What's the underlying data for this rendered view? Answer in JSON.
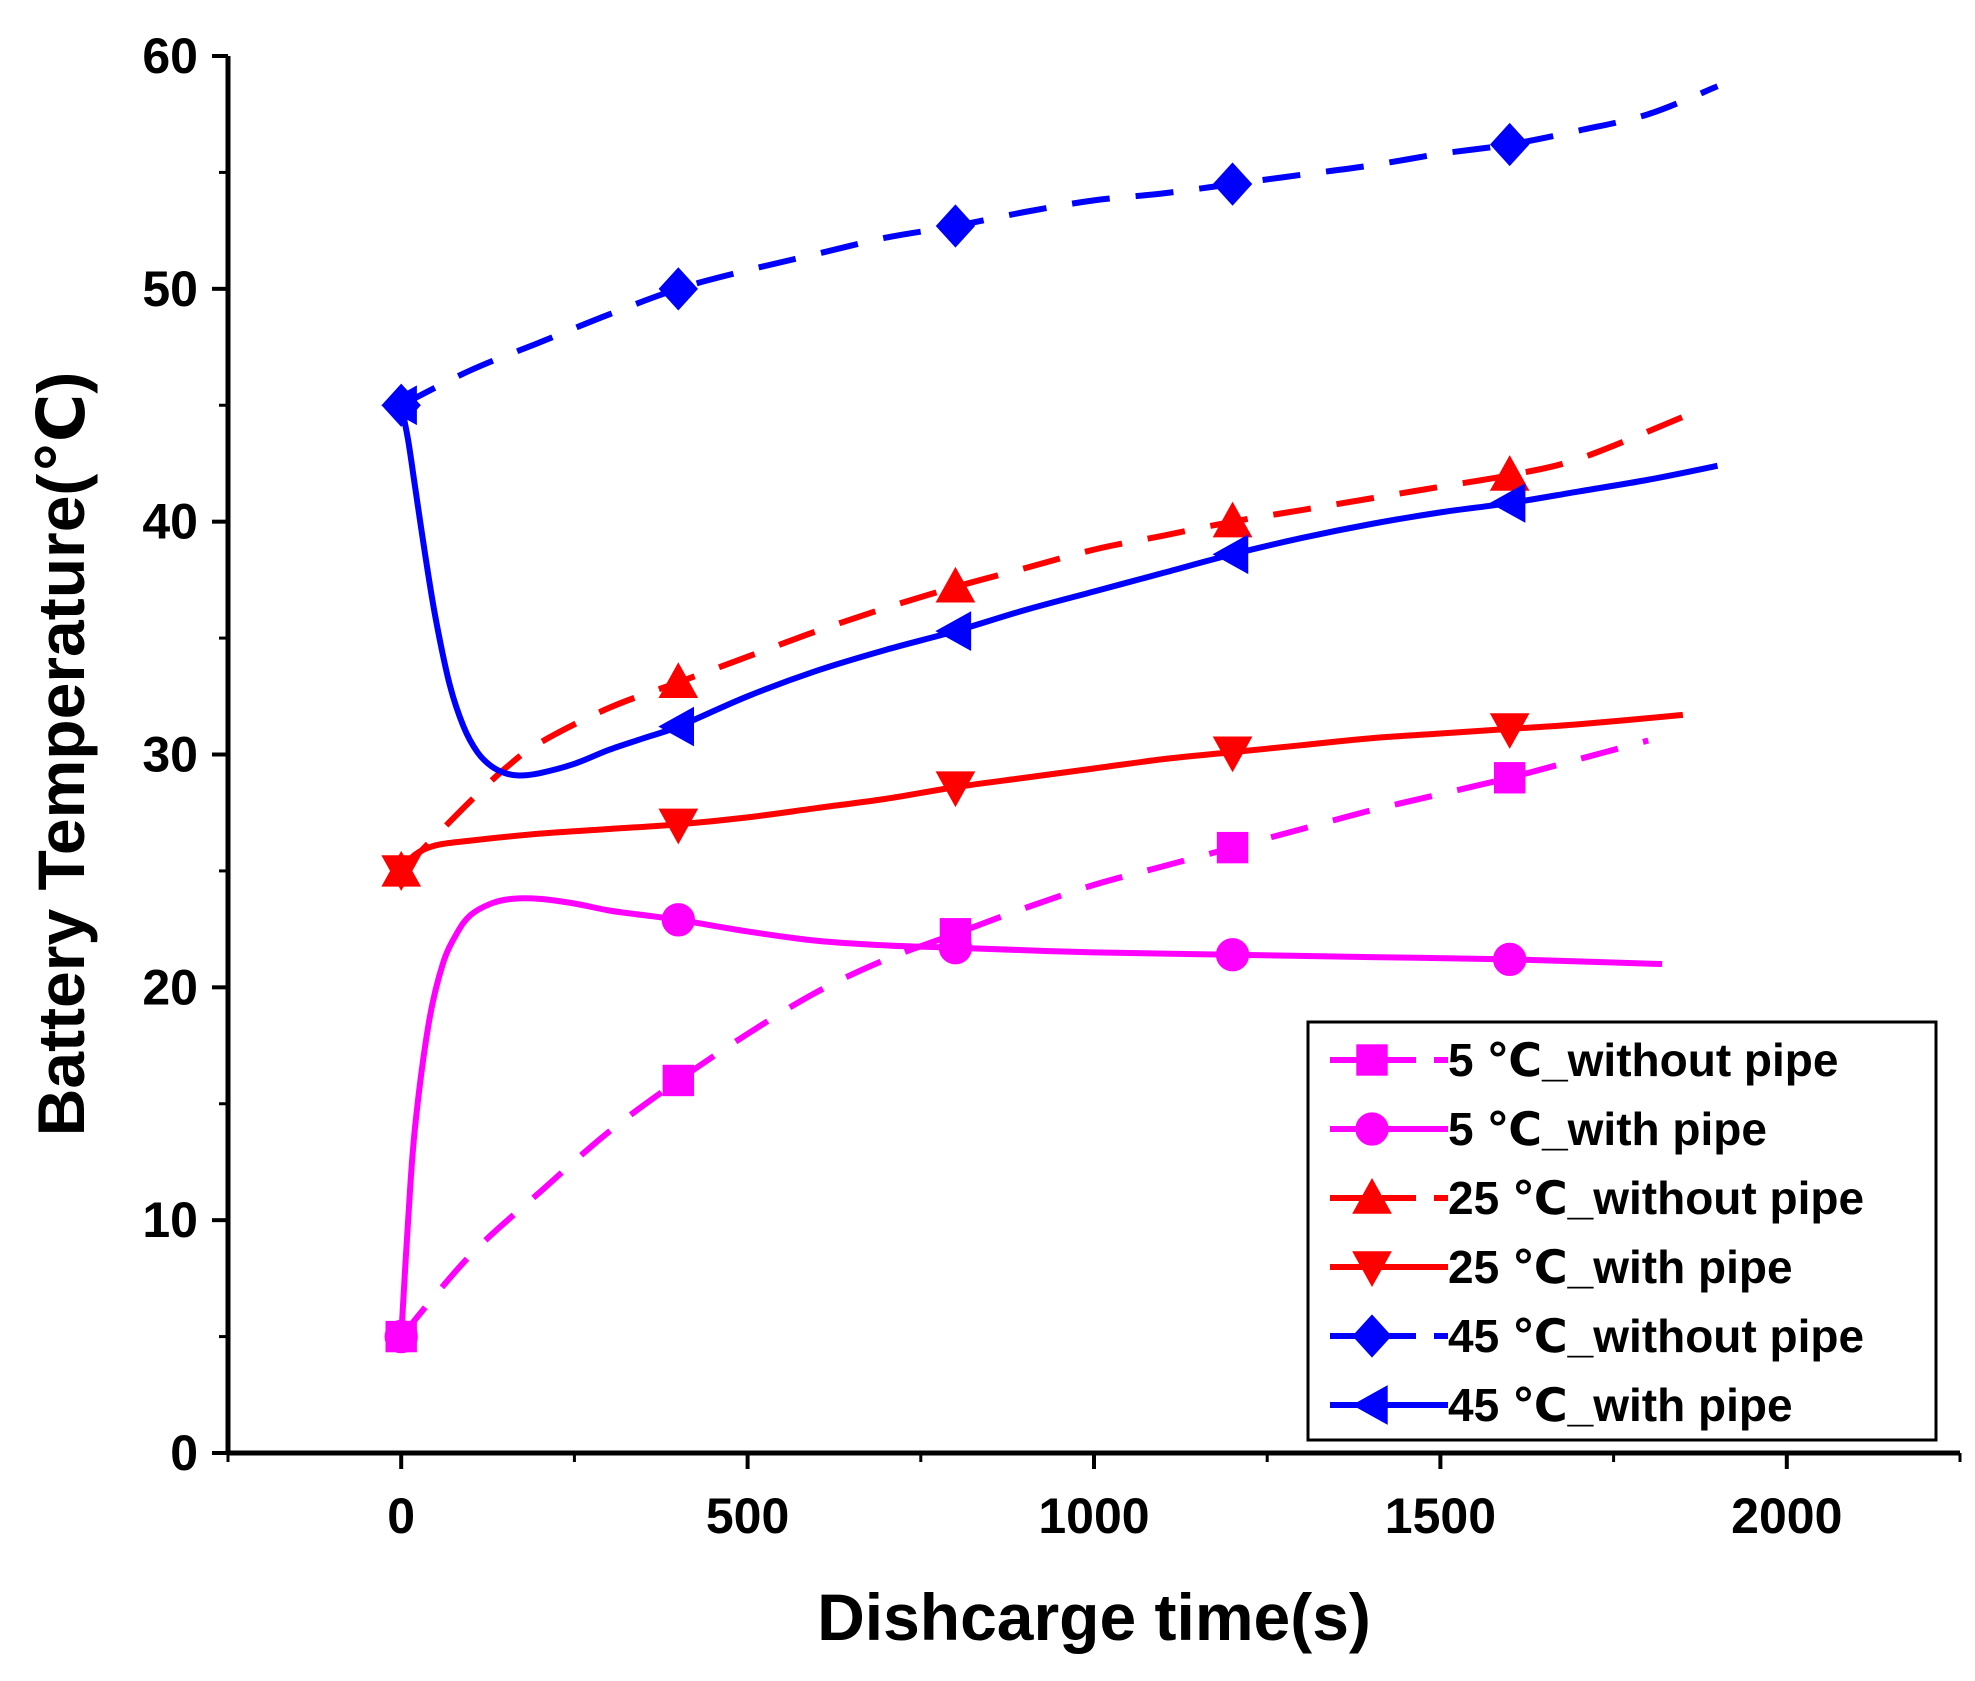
{
  "chart_data": {
    "type": "line",
    "title": "",
    "xlabel": "Dishcarge time(s)",
    "ylabel": "Battery Temperature(℃)",
    "xlim": [
      -250,
      2250
    ],
    "ylim": [
      0,
      60
    ],
    "xticks": [
      0,
      500,
      1000,
      1500,
      2000
    ],
    "xtick_labels": [
      "0",
      "500",
      "1000",
      "1500",
      "2000"
    ],
    "yticks": [
      0,
      10,
      20,
      30,
      40,
      50,
      60
    ],
    "ytick_labels": [
      "0",
      "10",
      "20",
      "30",
      "40",
      "50",
      "60"
    ],
    "grid": false,
    "legend_position": "bottom-right",
    "series": [
      {
        "name": "5 ℃_without pipe",
        "color": "#ff00ff",
        "dash": true,
        "marker": "square",
        "x": [
          0,
          100,
          200,
          300,
          400,
          500,
          600,
          700,
          800,
          900,
          1000,
          1100,
          1200,
          1300,
          1400,
          1500,
          1600,
          1700,
          1800
        ],
        "y": [
          5,
          8.5,
          11.2,
          13.8,
          16,
          18,
          19.8,
          21.2,
          22.3,
          23.4,
          24.4,
          25.2,
          26,
          26.8,
          27.6,
          28.3,
          29,
          29.8,
          30.6
        ],
        "marker_x": [
          0,
          400,
          800,
          1200,
          1600
        ],
        "marker_y": [
          5,
          16,
          22.3,
          26,
          29
        ]
      },
      {
        "name": "5 ℃_with pipe",
        "color": "#ff00ff",
        "dash": false,
        "marker": "circle",
        "x": [
          0,
          10,
          20,
          40,
          60,
          80,
          100,
          130,
          160,
          200,
          250,
          300,
          350,
          400,
          500,
          600,
          700,
          800,
          1000,
          1200,
          1400,
          1600,
          1820
        ],
        "y": [
          5,
          10,
          14,
          18.5,
          21,
          22.3,
          23.1,
          23.6,
          23.8,
          23.8,
          23.6,
          23.3,
          23.1,
          22.9,
          22.4,
          22,
          21.8,
          21.7,
          21.5,
          21.4,
          21.3,
          21.2,
          21
        ],
        "marker_x": [
          0,
          400,
          800,
          1200,
          1600
        ],
        "marker_y": [
          5,
          22.9,
          21.7,
          21.4,
          21.2
        ]
      },
      {
        "name": "25 ℃_without pipe",
        "color": "#ff0000",
        "dash": true,
        "marker": "triangle-up",
        "x": [
          0,
          50,
          100,
          150,
          200,
          300,
          400,
          500,
          600,
          700,
          800,
          900,
          1000,
          1100,
          1200,
          1300,
          1400,
          1500,
          1600,
          1700,
          1850
        ],
        "y": [
          25,
          26.5,
          28,
          29.4,
          30.5,
          32,
          33.1,
          34.2,
          35.3,
          36.3,
          37.2,
          38,
          38.8,
          39.4,
          40,
          40.5,
          41,
          41.5,
          42,
          42.7,
          44.5
        ],
        "marker_x": [
          0,
          400,
          800,
          1200,
          1600
        ],
        "marker_y": [
          25,
          33.1,
          37.2,
          40,
          42
        ]
      },
      {
        "name": "25 ℃_with pipe",
        "color": "#ff0000",
        "dash": false,
        "marker": "triangle-down",
        "x": [
          0,
          20,
          50,
          100,
          200,
          300,
          400,
          500,
          600,
          700,
          800,
          900,
          1000,
          1100,
          1200,
          1300,
          1400,
          1500,
          1600,
          1700,
          1850
        ],
        "y": [
          25,
          25.7,
          26.1,
          26.3,
          26.6,
          26.8,
          27,
          27.3,
          27.7,
          28.1,
          28.6,
          29,
          29.4,
          29.8,
          30.1,
          30.4,
          30.7,
          30.9,
          31.1,
          31.3,
          31.7
        ],
        "marker_x": [
          0,
          400,
          800,
          1200,
          1600
        ],
        "marker_y": [
          25,
          27,
          28.6,
          30.1,
          31.1
        ]
      },
      {
        "name": "45 ℃_without pipe",
        "color": "#0000ff",
        "dash": true,
        "marker": "diamond",
        "x": [
          0,
          100,
          200,
          300,
          400,
          500,
          600,
          700,
          800,
          900,
          1000,
          1100,
          1200,
          1300,
          1400,
          1500,
          1600,
          1700,
          1800,
          1900
        ],
        "y": [
          45,
          46.5,
          47.7,
          48.9,
          50,
          50.8,
          51.5,
          52.2,
          52.7,
          53.3,
          53.8,
          54.1,
          54.5,
          54.9,
          55.3,
          55.8,
          56.2,
          56.8,
          57.5,
          58.7
        ],
        "marker_x": [
          0,
          400,
          800,
          1200,
          1600
        ],
        "marker_y": [
          45,
          50,
          52.7,
          54.5,
          56.2
        ]
      },
      {
        "name": "45 ℃_with pipe",
        "color": "#0000ff",
        "dash": false,
        "marker": "triangle-left",
        "x": [
          0,
          10,
          20,
          35,
          50,
          70,
          90,
          110,
          130,
          150,
          170,
          200,
          250,
          300,
          350,
          400,
          500,
          600,
          700,
          800,
          900,
          1000,
          1100,
          1200,
          1300,
          1400,
          1500,
          1600,
          1700,
          1800,
          1900
        ],
        "y": [
          45,
          43.5,
          41.5,
          38.5,
          35.8,
          33,
          31.2,
          30.1,
          29.5,
          29.2,
          29.1,
          29.2,
          29.6,
          30.2,
          30.7,
          31.2,
          32.5,
          33.6,
          34.5,
          35.3,
          36.2,
          37,
          37.8,
          38.6,
          39.3,
          39.9,
          40.4,
          40.8,
          41.3,
          41.8,
          42.4
        ],
        "marker_x": [
          0,
          400,
          800,
          1200,
          1600
        ],
        "marker_y": [
          45,
          31.2,
          35.3,
          38.6,
          40.8
        ]
      }
    ]
  }
}
